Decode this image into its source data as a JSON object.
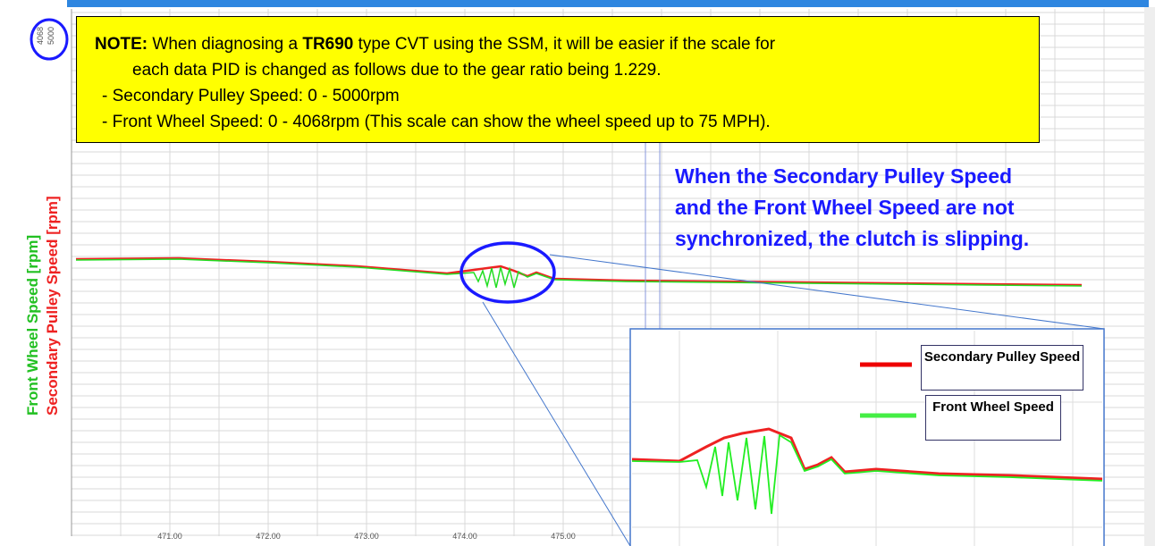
{
  "y_axis": {
    "labels": [
      "Front Wheel Speed [rpm]",
      "Secondary Pulley Speed [rpm]"
    ],
    "top_ticks": [
      "4068",
      "5000"
    ]
  },
  "x_axis": {
    "ticks": [
      "471.00",
      "472.00",
      "473.00",
      "474.00",
      "475.00"
    ]
  },
  "note": {
    "label": "NOTE:",
    "line1": [
      " When diagnosing a ",
      "TR690",
      " type CVT using the SSM, it will be easier if the scale for"
    ],
    "line2": "each data PID is changed as follows due to the gear ratio being 1.229.",
    "line3": "- Secondary Pulley Speed: 0 - 5000rpm",
    "line4": "- Front Wheel Speed: 0 - 4068rpm  (This scale can show the wheel speed up to 75 MPH)."
  },
  "callout": [
    "When the Secondary Pulley Speed",
    "and the Front Wheel Speed are not",
    "synchronized, the clutch is slipping."
  ],
  "legend": [
    "Secondary Pulley Speed",
    "Front Wheel Speed"
  ]
}
